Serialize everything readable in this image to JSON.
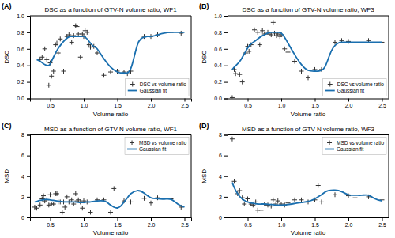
{
  "chart_data": [
    {
      "type": "scatter",
      "title": "DSC as a function of GTV-N volume ratio, WF1",
      "annotation": "(A)",
      "xlabel": "Volume ratio",
      "ylabel": "DSC",
      "xlim": [
        0.2,
        2.6
      ],
      "xticks": [
        0.5,
        {
          "value": 1,
          "label": "1.0"
        },
        1.5,
        {
          "value": 2,
          "label": "2.0"
        },
        2.5
      ],
      "ylim": [
        0,
        1.0
      ],
      "yticks": [
        {
          "value": 0,
          "label": "0.0"
        },
        0.2,
        0.4,
        0.6,
        0.8,
        {
          "value": 1,
          "label": "1.0"
        }
      ],
      "grid": false,
      "legend": "lower right",
      "series": [
        {
          "name": "DSC vs volume ratio",
          "type": "scatter",
          "marker": "+",
          "color": "#333333",
          "x": [
            0.35,
            0.38,
            0.42,
            0.45,
            0.48,
            0.5,
            0.52,
            0.55,
            0.58,
            0.6,
            0.62,
            0.65,
            0.7,
            0.75,
            0.78,
            0.82,
            0.85,
            0.88,
            0.9,
            0.92,
            0.95,
            0.98,
            1.0,
            1.02,
            1.05,
            1.08,
            1.1,
            1.15,
            1.2,
            1.3,
            1.4,
            1.5,
            1.6,
            1.65,
            1.7,
            1.9,
            2.0,
            2.1,
            2.3,
            2.45
          ],
          "values": [
            0.47,
            0.5,
            0.6,
            0.47,
            0.16,
            0.43,
            0.27,
            0.33,
            0.65,
            0.67,
            0.55,
            0.72,
            0.33,
            0.75,
            0.77,
            0.68,
            0.76,
            0.88,
            0.87,
            0.78,
            0.5,
            0.78,
            0.75,
            0.82,
            0.8,
            0.65,
            0.62,
            0.63,
            0.55,
            0.28,
            0.32,
            0.33,
            0.32,
            0.3,
            0.33,
            0.75,
            0.75,
            0.77,
            0.8,
            0.79
          ]
        },
        {
          "name": "Gaussian fit",
          "type": "line",
          "line_style": "solid",
          "color": "#1a6faf",
          "x": [
            0.3,
            0.35,
            0.4,
            0.42,
            0.45,
            0.48,
            0.5,
            0.55,
            0.6,
            0.65,
            0.7,
            0.75,
            0.8,
            0.85,
            0.9,
            0.95,
            1.0,
            1.05,
            1.1,
            1.15,
            1.2,
            1.3,
            1.4,
            1.5,
            1.55,
            1.6,
            1.65,
            1.7,
            1.75,
            1.8,
            1.85,
            1.9,
            1.95,
            2.0,
            2.1,
            2.2,
            2.3,
            2.4,
            2.5
          ],
          "values": [
            0.47,
            0.45,
            0.42,
            0.41,
            0.4,
            0.4,
            0.42,
            0.5,
            0.58,
            0.64,
            0.69,
            0.73,
            0.75,
            0.75,
            0.75,
            0.75,
            0.75,
            0.72,
            0.67,
            0.63,
            0.6,
            0.48,
            0.38,
            0.32,
            0.31,
            0.31,
            0.31,
            0.36,
            0.5,
            0.65,
            0.72,
            0.74,
            0.75,
            0.75,
            0.77,
            0.79,
            0.8,
            0.8,
            0.8
          ]
        }
      ]
    },
    {
      "type": "scatter",
      "title": "DSC as a function of GTV-N volume ratio, WF3",
      "annotation": "(B)",
      "xlabel": "Volume ratio",
      "ylabel": "DSC",
      "xlim": [
        0.2,
        2.6
      ],
      "xticks": [
        0.5,
        {
          "value": 1,
          "label": "1.0"
        },
        1.5,
        {
          "value": 2,
          "label": "2.0"
        },
        2.5
      ],
      "ylim": [
        0,
        1.0
      ],
      "yticks": [
        {
          "value": 0,
          "label": "0.0"
        },
        0.2,
        0.4,
        0.6,
        0.8,
        {
          "value": 1,
          "label": "1.0"
        }
      ],
      "grid": false,
      "legend": "lower right",
      "series": [
        {
          "name": "DSC vs volume ratio",
          "type": "scatter",
          "marker": "+",
          "color": "#333333",
          "x": [
            0.27,
            0.3,
            0.32,
            0.38,
            0.42,
            0.47,
            0.5,
            0.52,
            0.55,
            0.6,
            0.65,
            0.68,
            0.72,
            0.75,
            0.8,
            0.82,
            0.85,
            0.88,
            0.9,
            0.93,
            0.95,
            0.98,
            1.0,
            1.05,
            1.1,
            1.2,
            1.3,
            1.4,
            1.5,
            1.6,
            1.8,
            1.9,
            2.0,
            2.3,
            2.5
          ],
          "values": [
            0.01,
            0.35,
            0.3,
            0.29,
            0.2,
            0.55,
            0.63,
            0.57,
            0.65,
            0.83,
            0.8,
            0.65,
            0.82,
            0.78,
            0.8,
            0.78,
            0.77,
            0.92,
            0.79,
            0.76,
            0.78,
            0.75,
            0.77,
            0.6,
            0.56,
            0.45,
            0.33,
            0.25,
            0.35,
            0.35,
            0.68,
            0.7,
            0.69,
            0.7,
            0.68
          ]
        },
        {
          "name": "Gaussian fit",
          "type": "line",
          "line_style": "solid",
          "color": "#1a6faf",
          "x": [
            0.27,
            0.3,
            0.35,
            0.4,
            0.45,
            0.5,
            0.55,
            0.6,
            0.65,
            0.7,
            0.75,
            0.8,
            0.85,
            0.9,
            0.95,
            1.0,
            1.05,
            1.1,
            1.2,
            1.3,
            1.4,
            1.5,
            1.55,
            1.6,
            1.65,
            1.7,
            1.75,
            1.8,
            1.85,
            1.9,
            2.0,
            2.1,
            2.3,
            2.5
          ],
          "values": [
            0.35,
            0.38,
            0.42,
            0.47,
            0.54,
            0.61,
            0.66,
            0.69,
            0.72,
            0.75,
            0.77,
            0.79,
            0.8,
            0.8,
            0.8,
            0.79,
            0.74,
            0.67,
            0.53,
            0.41,
            0.34,
            0.33,
            0.33,
            0.34,
            0.38,
            0.48,
            0.58,
            0.64,
            0.67,
            0.68,
            0.68,
            0.68,
            0.68,
            0.68
          ]
        }
      ]
    },
    {
      "type": "scatter",
      "title": "MSD as a function of GTV-N volume ratio, WF1",
      "annotation": "(C)",
      "xlabel": "Volume ratio",
      "ylabel": "MSD",
      "xlim": [
        0.2,
        2.6
      ],
      "xticks": [
        0.5,
        {
          "value": 1,
          "label": "1.0"
        },
        1.5,
        {
          "value": 2,
          "label": "2.0"
        },
        2.5
      ],
      "ylim": [
        0,
        8
      ],
      "yticks": [
        0,
        2,
        4,
        6,
        8
      ],
      "grid": false,
      "legend": "upper right",
      "series": [
        {
          "name": "MSD vs volume ratio",
          "type": "scatter",
          "marker": "+",
          "color": "#333333",
          "x": [
            0.27,
            0.3,
            0.35,
            0.38,
            0.4,
            0.42,
            0.45,
            0.48,
            0.5,
            0.52,
            0.55,
            0.58,
            0.6,
            0.62,
            0.65,
            0.68,
            0.7,
            0.72,
            0.75,
            0.78,
            0.82,
            0.85,
            0.88,
            0.9,
            0.92,
            0.95,
            0.98,
            1.0,
            1.05,
            1.1,
            1.2,
            1.3,
            1.4,
            1.45,
            1.6,
            1.7,
            1.9,
            2.0,
            2.1,
            2.3,
            2.45
          ],
          "values": [
            1.0,
            0.9,
            1.2,
            1.8,
            2.1,
            1.6,
            1.7,
            1.2,
            2.2,
            1.3,
            1.3,
            2.3,
            2.3,
            1.5,
            1.5,
            0.5,
            1.5,
            1.0,
            2.0,
            1.5,
            1.7,
            1.3,
            2.3,
            1.6,
            1.7,
            1.5,
            0.9,
            1.6,
            1.5,
            0.5,
            1.7,
            1.7,
            0.5,
            2.8,
            1.6,
            1.5,
            1.85,
            1.4,
            1.9,
            1.8,
            1.0
          ]
        },
        {
          "name": "Gaussian fit",
          "type": "line",
          "line_style": "solid",
          "color": "#1a6faf",
          "x": [
            0.27,
            0.3,
            0.35,
            0.4,
            0.45,
            0.5,
            0.55,
            0.6,
            0.65,
            0.7,
            0.75,
            0.8,
            0.85,
            0.9,
            0.95,
            1.0,
            1.05,
            1.1,
            1.2,
            1.3,
            1.35,
            1.4,
            1.45,
            1.5,
            1.55,
            1.6,
            1.65,
            1.7,
            1.8,
            1.9,
            2.0,
            2.1,
            2.2,
            2.3,
            2.4,
            2.5
          ],
          "values": [
            1.5,
            1.55,
            1.65,
            1.72,
            1.75,
            1.7,
            1.65,
            1.6,
            1.55,
            1.5,
            1.5,
            1.5,
            1.5,
            1.48,
            1.45,
            1.45,
            1.5,
            1.5,
            1.6,
            1.6,
            1.45,
            1.2,
            1.0,
            0.92,
            1.1,
            1.5,
            1.9,
            2.3,
            2.6,
            2.35,
            1.9,
            1.82,
            1.78,
            1.75,
            1.3,
            1.0
          ]
        }
      ]
    },
    {
      "type": "scatter",
      "title": "MSD as a function of GTV-N volume ratio, WF3",
      "annotation": "(D)",
      "xlabel": "Volume ratio",
      "ylabel": "MSD",
      "xlim": [
        0.2,
        2.6
      ],
      "xticks": [
        0.5,
        {
          "value": 1,
          "label": "1.0"
        },
        1.5,
        {
          "value": 2,
          "label": "2.0"
        },
        2.5
      ],
      "ylim": [
        0,
        8
      ],
      "yticks": [
        0,
        2,
        4,
        6,
        8
      ],
      "grid": false,
      "legend": "upper right",
      "series": [
        {
          "name": "MSD vs volume ratio",
          "type": "scatter",
          "marker": "+",
          "color": "#333333",
          "x": [
            0.27,
            0.3,
            0.35,
            0.38,
            0.42,
            0.45,
            0.5,
            0.55,
            0.58,
            0.62,
            0.65,
            0.7,
            0.75,
            0.8,
            0.85,
            0.88,
            0.92,
            0.95,
            1.0,
            1.05,
            1.1,
            1.2,
            1.3,
            1.4,
            1.5,
            1.55,
            1.6,
            1.8,
            2.0,
            2.1,
            2.3,
            2.5
          ],
          "values": [
            7.6,
            3.5,
            2.3,
            2.6,
            1.9,
            1.3,
            1.8,
            1.3,
            1.2,
            1.5,
            0.7,
            0.7,
            1.3,
            1.2,
            1.1,
            1.7,
            1.3,
            1.6,
            1.3,
            1.2,
            1.4,
            1.7,
            1.7,
            1.5,
            1.7,
            3.1,
            1.5,
            2.2,
            2.1,
            1.9,
            2.0,
            1.7
          ]
        },
        {
          "name": "Gaussian fit",
          "type": "line",
          "line_style": "solid",
          "color": "#1a6faf",
          "x": [
            0.27,
            0.3,
            0.35,
            0.4,
            0.45,
            0.5,
            0.55,
            0.6,
            0.65,
            0.7,
            0.75,
            0.8,
            0.85,
            0.9,
            0.95,
            1.0,
            1.05,
            1.1,
            1.2,
            1.3,
            1.4,
            1.45,
            1.5,
            1.55,
            1.6,
            1.65,
            1.7,
            1.8,
            1.9,
            2.0,
            2.1,
            2.2,
            2.3,
            2.4,
            2.5
          ],
          "values": [
            3.4,
            2.9,
            2.3,
            1.9,
            1.65,
            1.5,
            1.4,
            1.35,
            1.3,
            1.3,
            1.3,
            1.28,
            1.25,
            1.22,
            1.2,
            1.2,
            1.22,
            1.25,
            1.35,
            1.45,
            1.55,
            1.65,
            1.8,
            2.0,
            2.2,
            2.45,
            2.6,
            2.65,
            2.5,
            2.2,
            2.15,
            2.15,
            2.15,
            1.8,
            1.6
          ]
        }
      ]
    }
  ]
}
